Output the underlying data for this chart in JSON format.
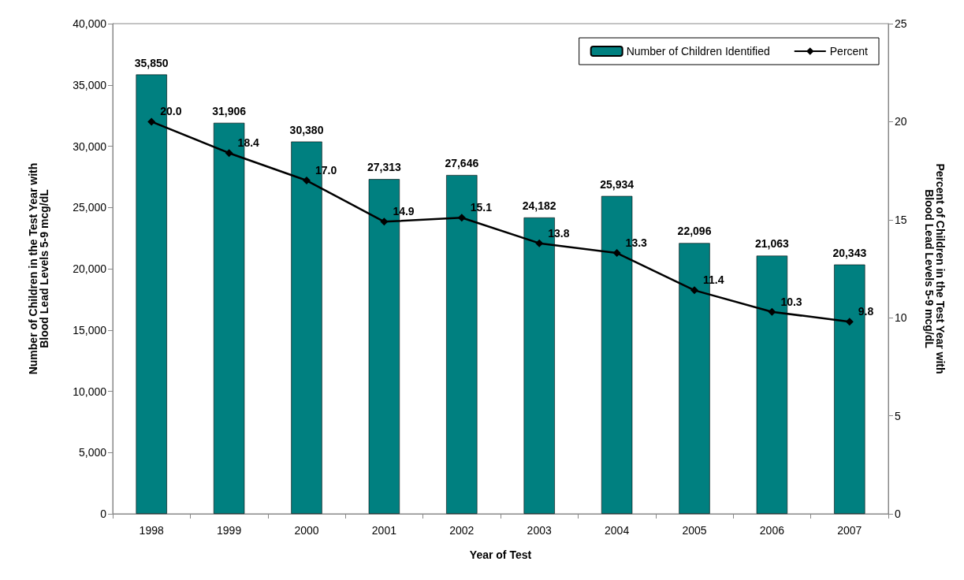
{
  "chart_data": {
    "type": "bar",
    "xlabel": "Year of Test",
    "ylabel": "Number of Children in the Test Year with\nBlood Lead Levels 5-9 mcg/dL",
    "y2label": "Percent of Children in the Test Year with\nBlood Lead Levels 5-9 mcg/dL",
    "categories": [
      "1998",
      "1999",
      "2000",
      "2001",
      "2002",
      "2003",
      "2004",
      "2005",
      "2006",
      "2007"
    ],
    "series": [
      {
        "name": "Number of Children Identified",
        "color": "#008080",
        "values": [
          35850,
          31906,
          30380,
          27313,
          27646,
          24182,
          25934,
          22096,
          21063,
          20343
        ],
        "value_labels": [
          "35,850",
          "31,906",
          "30,380",
          "27,313",
          "27,646",
          "24,182",
          "25,934",
          "22,096",
          "21,063",
          "20,343"
        ]
      },
      {
        "name": "Percent",
        "type": "line",
        "axis": "y2",
        "color": "#000000",
        "marker": "diamond",
        "values": [
          20.0,
          18.4,
          17.0,
          14.9,
          15.1,
          13.8,
          13.3,
          11.4,
          10.3,
          9.8
        ],
        "value_labels": [
          "20.0",
          "18.4",
          "17.0",
          "14.9",
          "15.1",
          "13.8",
          "13.3",
          "11.4",
          "10.3",
          "9.8"
        ]
      }
    ],
    "ylim": [
      0,
      40000
    ],
    "yticks": [
      {
        "value": 0,
        "label": "0"
      },
      {
        "value": 5000,
        "label": "5,000"
      },
      {
        "value": 10000,
        "label": "10,000"
      },
      {
        "value": 15000,
        "label": "15,000"
      },
      {
        "value": 20000,
        "label": "20,000"
      },
      {
        "value": 25000,
        "label": "25,000"
      },
      {
        "value": 30000,
        "label": "30,000"
      },
      {
        "value": 35000,
        "label": "35,000"
      },
      {
        "value": 40000,
        "label": "40,000"
      }
    ],
    "y2lim": [
      0,
      25
    ],
    "y2ticks": [
      0,
      5,
      10,
      15,
      20,
      25
    ],
    "grid": false,
    "legend": "top right"
  }
}
